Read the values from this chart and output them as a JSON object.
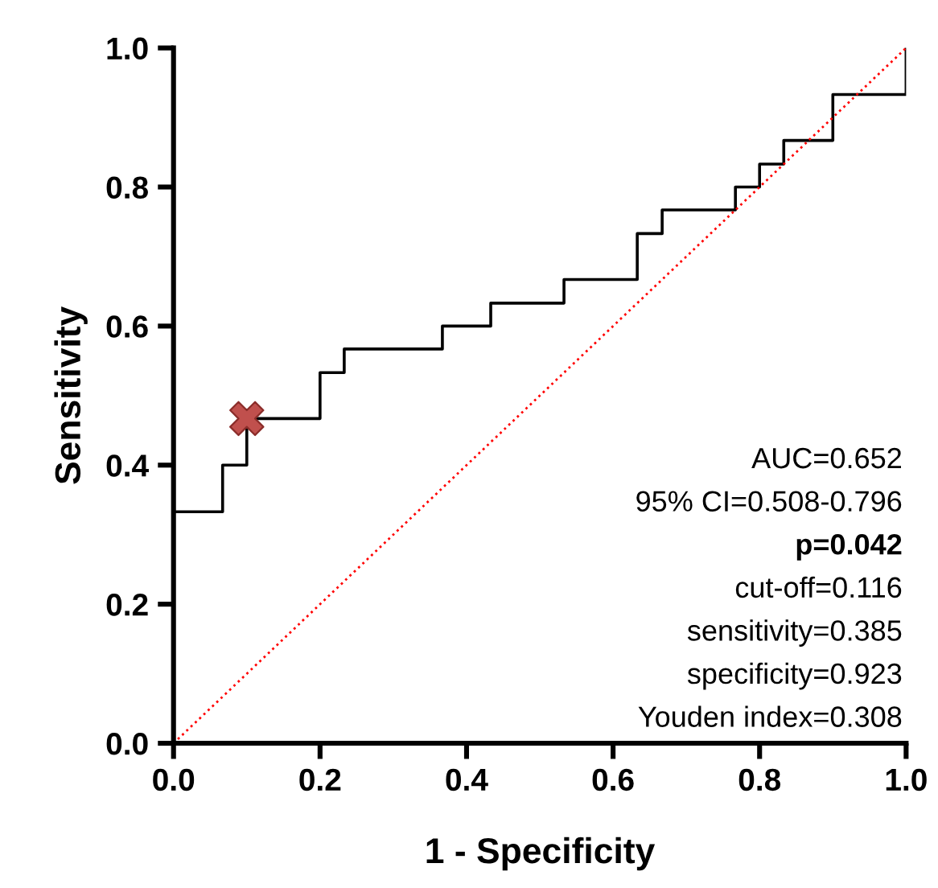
{
  "chart_data": {
    "type": "step",
    "xlabel": "1 - Specificity",
    "ylabel": "Sensitivity",
    "series": [
      {
        "color": "#000000",
        "x": [
          0,
          0,
          0.067,
          0.1,
          0.2,
          0.233,
          0.367,
          0.433,
          0.533,
          0.633,
          0.667,
          0.767,
          0.8,
          0.833,
          0.9,
          1.0
        ],
        "values": [
          0,
          0.333,
          0.4,
          0.467,
          0.533,
          0.567,
          0.6,
          0.633,
          0.667,
          0.733,
          0.767,
          0.8,
          0.833,
          0.867,
          0.933,
          1.0
        ]
      },
      {
        "type": "line",
        "color": "#ff0000",
        "line_style": "dotted",
        "x": [
          0,
          1
        ],
        "values": [
          0,
          1
        ]
      },
      {
        "type": "scatter",
        "color": "#c0504d",
        "marker": "cross",
        "x": [
          0.1
        ],
        "values": [
          0.467
        ]
      }
    ],
    "xlim": [
      0,
      1
    ],
    "ylim": [
      0,
      1
    ],
    "xticks": [
      {
        "value": 0,
        "label": "0.0"
      },
      {
        "value": 0.2,
        "label": "0.2"
      },
      {
        "value": 0.4,
        "label": "0.4"
      },
      {
        "value": 0.6,
        "label": "0.6"
      },
      {
        "value": 0.8,
        "label": "0.8"
      },
      {
        "value": 1,
        "label": "1.0"
      }
    ],
    "yticks": [
      {
        "value": 0,
        "label": "0.0"
      },
      {
        "value": 0.2,
        "label": "0.2"
      },
      {
        "value": 0.4,
        "label": "0.4"
      },
      {
        "value": 0.6,
        "label": "0.6"
      },
      {
        "value": 0.8,
        "label": "0.8"
      },
      {
        "value": 1,
        "label": "1.0"
      }
    ],
    "grid": false,
    "annotations": [
      "AUC=0.652",
      "95% CI=0.508-0.796",
      "p=0.042",
      "cut-off=0.116",
      "sensitivity=0.385",
      "specificity=0.923",
      "Youden index=0.308"
    ]
  }
}
